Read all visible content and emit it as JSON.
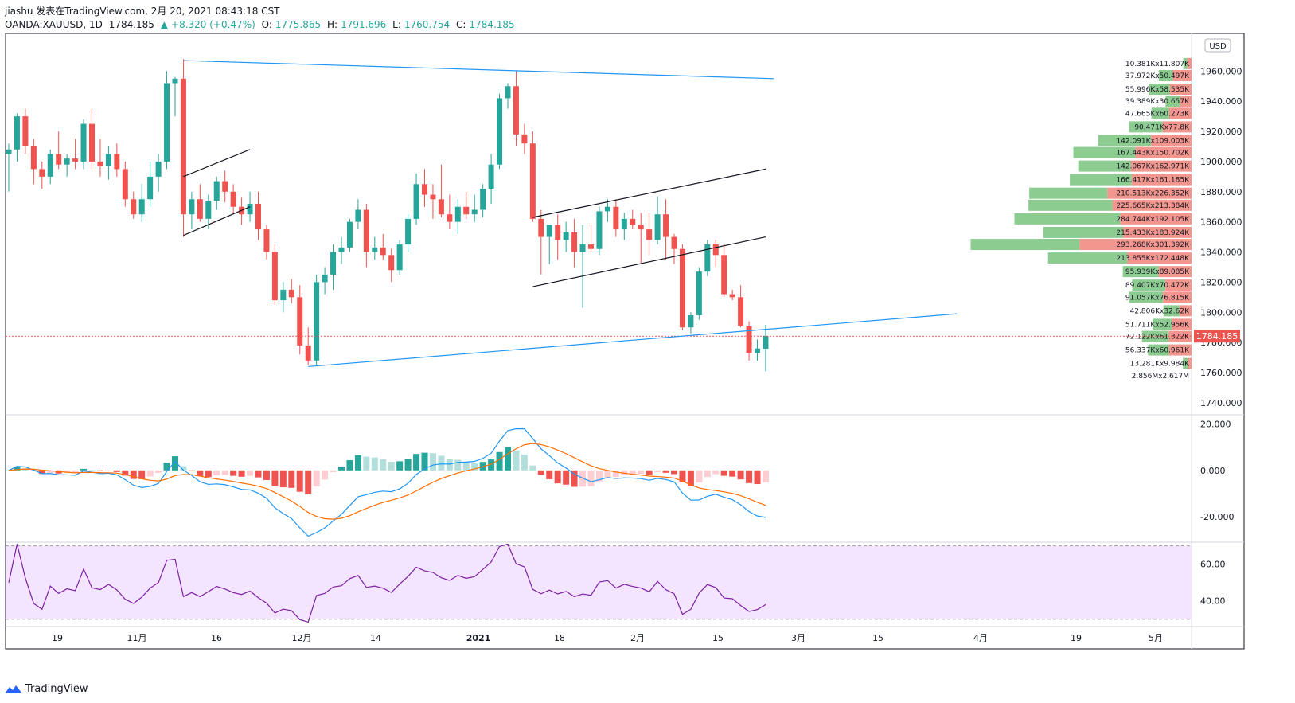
{
  "header": {
    "line1": "jiashu 发表在TradingView.com, 2月 20, 2021 08:43:18 CST",
    "symbol": "OANDA:XAUUSD, 1D",
    "last": "1784.185",
    "change": "+8.320 (+0.47%)",
    "o_label": "O:",
    "o_val": "1775.865",
    "h_label": "H:",
    "h_val": "1791.696",
    "l_label": "L:",
    "l_val": "1760.754",
    "c_label": "C:",
    "c_val": "1784.185"
  },
  "brand": {
    "name": "TradingView"
  },
  "colors": {
    "up": "#26a69a",
    "down": "#ef5350",
    "macd": "#2196f3",
    "signal": "#ff6d00",
    "rsi": "#7b1fa2",
    "rsi_band": "#f3e5ff"
  },
  "chart_data": [
    {
      "type": "candlestick",
      "currency": "USD",
      "last_price": "1784.185",
      "y_ticks": [
        "1960.000",
        "1940.000",
        "1920.000",
        "1900.000",
        "1880.000",
        "1860.000",
        "1840.000",
        "1820.000",
        "1800.000",
        "1780.000",
        "1760.000",
        "1740.000"
      ],
      "ylim": [
        1732,
        1985
      ],
      "x_ticks": [
        "19",
        "11月",
        "16",
        "12月",
        "14",
        "2021",
        "18",
        "2月",
        "15",
        "3月",
        "15",
        "4月",
        "19",
        "5月"
      ],
      "ohlc": [
        [
          1905,
          1912,
          1880,
          1908
        ],
        [
          1908,
          1932,
          1900,
          1930
        ],
        [
          1930,
          1935,
          1905,
          1910
        ],
        [
          1910,
          1915,
          1885,
          1895
        ],
        [
          1895,
          1900,
          1882,
          1890
        ],
        [
          1890,
          1908,
          1885,
          1905
        ],
        [
          1905,
          1920,
          1895,
          1898
        ],
        [
          1898,
          1905,
          1890,
          1902
        ],
        [
          1902,
          1915,
          1895,
          1900
        ],
        [
          1900,
          1928,
          1895,
          1925
        ],
        [
          1925,
          1935,
          1895,
          1900
        ],
        [
          1900,
          1915,
          1890,
          1897
        ],
        [
          1897,
          1910,
          1888,
          1905
        ],
        [
          1905,
          1912,
          1890,
          1895
        ],
        [
          1895,
          1900,
          1870,
          1875
        ],
        [
          1875,
          1880,
          1862,
          1865
        ],
        [
          1865,
          1885,
          1860,
          1875
        ],
        [
          1875,
          1900,
          1870,
          1890
        ],
        [
          1890,
          1905,
          1880,
          1900
        ],
        [
          1900,
          1960,
          1895,
          1952
        ],
        [
          1952,
          1956,
          1930,
          1955
        ],
        [
          1955,
          1968,
          1850,
          1865
        ],
        [
          1865,
          1880,
          1855,
          1875
        ],
        [
          1875,
          1885,
          1860,
          1862
        ],
        [
          1862,
          1878,
          1855,
          1874
        ],
        [
          1874,
          1890,
          1868,
          1887
        ],
        [
          1887,
          1894,
          1873,
          1880
        ],
        [
          1880,
          1885,
          1865,
          1870
        ],
        [
          1870,
          1876,
          1858,
          1865
        ],
        [
          1865,
          1880,
          1860,
          1872
        ],
        [
          1872,
          1880,
          1848,
          1855
        ],
        [
          1855,
          1858,
          1835,
          1840
        ],
        [
          1840,
          1845,
          1805,
          1808
        ],
        [
          1808,
          1820,
          1800,
          1815
        ],
        [
          1815,
          1822,
          1806,
          1810
        ],
        [
          1810,
          1818,
          1772,
          1778
        ],
        [
          1778,
          1790,
          1765,
          1768
        ],
        [
          1768,
          1825,
          1765,
          1820
        ],
        [
          1820,
          1830,
          1812,
          1825
        ],
        [
          1825,
          1845,
          1815,
          1840
        ],
        [
          1840,
          1850,
          1832,
          1843
        ],
        [
          1843,
          1862,
          1840,
          1860
        ],
        [
          1860,
          1875,
          1855,
          1868
        ],
        [
          1868,
          1872,
          1830,
          1840
        ],
        [
          1840,
          1850,
          1835,
          1843
        ],
        [
          1843,
          1852,
          1835,
          1838
        ],
        [
          1838,
          1842,
          1820,
          1828
        ],
        [
          1828,
          1848,
          1825,
          1845
        ],
        [
          1845,
          1865,
          1840,
          1862
        ],
        [
          1862,
          1892,
          1858,
          1885
        ],
        [
          1885,
          1895,
          1870,
          1878
        ],
        [
          1878,
          1885,
          1862,
          1875
        ],
        [
          1875,
          1898,
          1863,
          1865
        ],
        [
          1865,
          1878,
          1855,
          1860
        ],
        [
          1860,
          1875,
          1852,
          1870
        ],
        [
          1870,
          1880,
          1862,
          1865
        ],
        [
          1865,
          1878,
          1860,
          1868
        ],
        [
          1868,
          1885,
          1863,
          1882
        ],
        [
          1882,
          1905,
          1872,
          1898
        ],
        [
          1898,
          1945,
          1895,
          1942
        ],
        [
          1942,
          1952,
          1935,
          1950
        ],
        [
          1950,
          1960,
          1910,
          1918
        ],
        [
          1918,
          1925,
          1905,
          1912
        ],
        [
          1912,
          1920,
          1860,
          1862
        ],
        [
          1862,
          1868,
          1825,
          1850
        ],
        [
          1850,
          1858,
          1832,
          1858
        ],
        [
          1858,
          1865,
          1835,
          1848
        ],
        [
          1848,
          1860,
          1840,
          1853
        ],
        [
          1853,
          1862,
          1830,
          1840
        ],
        [
          1840,
          1858,
          1803,
          1845
        ],
        [
          1845,
          1858,
          1840,
          1842
        ],
        [
          1842,
          1870,
          1838,
          1867
        ],
        [
          1867,
          1875,
          1860,
          1870
        ],
        [
          1870,
          1875,
          1850,
          1855
        ],
        [
          1855,
          1866,
          1848,
          1862
        ],
        [
          1862,
          1868,
          1855,
          1858
        ],
        [
          1858,
          1866,
          1832,
          1855
        ],
        [
          1855,
          1866,
          1838,
          1848
        ],
        [
          1848,
          1877,
          1845,
          1865
        ],
        [
          1865,
          1875,
          1835,
          1850
        ],
        [
          1850,
          1852,
          1832,
          1842
        ],
        [
          1842,
          1845,
          1788,
          1790
        ],
        [
          1790,
          1800,
          1786,
          1798
        ],
        [
          1798,
          1830,
          1795,
          1827
        ],
        [
          1827,
          1848,
          1824,
          1845
        ],
        [
          1845,
          1848,
          1830,
          1838
        ],
        [
          1838,
          1845,
          1810,
          1812
        ],
        [
          1812,
          1815,
          1808,
          1810
        ],
        [
          1810,
          1818,
          1790,
          1791
        ],
        [
          1791,
          1794,
          1768,
          1773
        ],
        [
          1773,
          1782,
          1768,
          1776
        ],
        [
          1775.865,
          1791.696,
          1760.754,
          1784.185
        ]
      ],
      "volume_profile": [
        {
          "price": 1965,
          "label": "10.381Kx11.807K",
          "buy": 10.381,
          "sell": 11.807
        },
        {
          "price": 1957,
          "label": "37.972Kx50.497K",
          "buy": 37.972,
          "sell": 50.497
        },
        {
          "price": 1948,
          "label": "55.996Kx58.535K",
          "buy": 55.996,
          "sell": 58.535
        },
        {
          "price": 1940,
          "label": "39.389Kx30.657K",
          "buy": 39.389,
          "sell": 30.657
        },
        {
          "price": 1932,
          "label": "47.665Kx60.273K",
          "buy": 47.665,
          "sell": 60.273
        },
        {
          "price": 1923,
          "label": "90.471Kx77.8K",
          "buy": 90.471,
          "sell": 77.8
        },
        {
          "price": 1914,
          "label": "142.091Kx109.003K",
          "buy": 142.091,
          "sell": 109.003
        },
        {
          "price": 1906,
          "label": "167.443Kx150.702K",
          "buy": 167.443,
          "sell": 150.702
        },
        {
          "price": 1897,
          "label": "142.067Kx162.971K",
          "buy": 142.067,
          "sell": 162.971
        },
        {
          "price": 1888,
          "label": "166.417Kx161.185K",
          "buy": 166.417,
          "sell": 161.185
        },
        {
          "price": 1879,
          "label": "210.513Kx226.352K",
          "buy": 210.513,
          "sell": 226.352
        },
        {
          "price": 1871,
          "label": "225.665Kx213.384K",
          "buy": 225.665,
          "sell": 213.384
        },
        {
          "price": 1862,
          "label": "284.744Kx192.105K",
          "buy": 284.744,
          "sell": 192.105
        },
        {
          "price": 1853,
          "label": "215.433Kx183.924K",
          "buy": 215.433,
          "sell": 183.924
        },
        {
          "price": 1845,
          "label": "293.268Kx301.392K",
          "buy": 293.268,
          "sell": 301.392
        },
        {
          "price": 1836,
          "label": "213.855Kx172.448K",
          "buy": 213.855,
          "sell": 172.448
        },
        {
          "price": 1827,
          "label": "95.939Kx89.085K",
          "buy": 95.939,
          "sell": 89.085
        },
        {
          "price": 1818,
          "label": "89.407Kx70.472K",
          "buy": 89.407,
          "sell": 70.472
        },
        {
          "price": 1810,
          "label": "91.057Kx76.815K",
          "buy": 91.057,
          "sell": 76.815
        },
        {
          "price": 1801,
          "label": "42.806Kx32.62K",
          "buy": 42.806,
          "sell": 32.62
        },
        {
          "price": 1792,
          "label": "51.711Kx52.956K",
          "buy": 51.711,
          "sell": 52.956
        },
        {
          "price": 1784,
          "label": "72.122Kx61.322K",
          "buy": 72.122,
          "sell": 61.322
        },
        {
          "price": 1775,
          "label": "56.337Kx60.961K",
          "buy": 56.337,
          "sell": 60.961
        },
        {
          "price": 1766,
          "label": "13.281Kx9.984K",
          "buy": 13.281,
          "sell": 9.984
        },
        {
          "price": 1758,
          "label": "2.856Mx2.617M",
          "buy": 0,
          "sell": 0
        }
      ],
      "trendlines": [
        {
          "color": "#2196f3",
          "from": [
            21,
            1967
          ],
          "to": [
            92,
            1955
          ]
        },
        {
          "color": "#2196f3",
          "from": [
            36,
            1764
          ],
          "to": [
            114,
            1799
          ]
        },
        {
          "color": "#131722",
          "from": [
            21,
            1890
          ],
          "to": [
            29,
            1908
          ]
        },
        {
          "color": "#131722",
          "from": [
            21,
            1851
          ],
          "to": [
            29,
            1870
          ]
        },
        {
          "color": "#131722",
          "from": [
            63,
            1863
          ],
          "to": [
            91,
            1895
          ]
        },
        {
          "color": "#131722",
          "from": [
            63,
            1817
          ],
          "to": [
            91,
            1850
          ]
        }
      ]
    },
    {
      "type": "macd",
      "y_ticks": [
        "20.000",
        "0.000",
        "-20.000"
      ],
      "ylim": [
        -31,
        24
      ]
    },
    {
      "type": "rsi",
      "y_ticks": [
        "60.00",
        "40.00"
      ],
      "ylim": [
        26,
        72
      ],
      "band": [
        30,
        70
      ]
    }
  ]
}
